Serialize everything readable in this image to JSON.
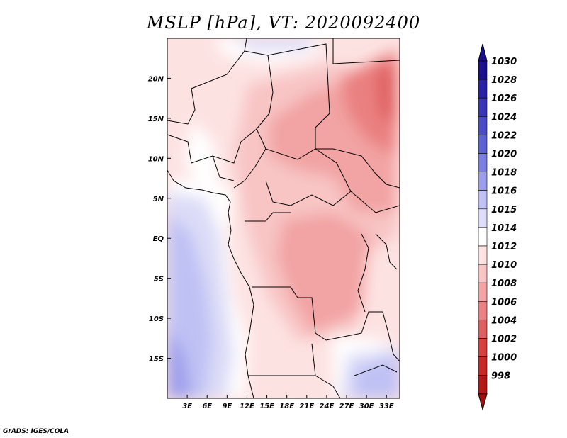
{
  "title": "MSLP [hPa], VT: 2020092400",
  "footer": "GrADS: IGES/COLA",
  "map": {
    "projection": "latlon",
    "lon_range": [
      0,
      35
    ],
    "lat_range": [
      -20,
      25
    ],
    "x_ticks": [
      {
        "lon": 3,
        "label": "3E"
      },
      {
        "lon": 6,
        "label": "6E"
      },
      {
        "lon": 9,
        "label": "9E"
      },
      {
        "lon": 12,
        "label": "12E"
      },
      {
        "lon": 15,
        "label": "15E"
      },
      {
        "lon": 18,
        "label": "18E"
      },
      {
        "lon": 21,
        "label": "21E"
      },
      {
        "lon": 24,
        "label": "24E"
      },
      {
        "lon": 27,
        "label": "27E"
      },
      {
        "lon": 30,
        "label": "30E"
      },
      {
        "lon": 33,
        "label": "33E"
      }
    ],
    "y_ticks": [
      {
        "lat": 20,
        "label": "20N"
      },
      {
        "lat": 15,
        "label": "15N"
      },
      {
        "lat": 10,
        "label": "10N"
      },
      {
        "lat": 5,
        "label": "5N"
      },
      {
        "lat": 0,
        "label": "EQ"
      },
      {
        "lat": -5,
        "label": "5S"
      },
      {
        "lat": -10,
        "label": "10S"
      },
      {
        "lat": -15,
        "label": "15S"
      }
    ]
  },
  "colorbar": {
    "levels": [
      {
        "label": "1030",
        "color": "#1a0f8c"
      },
      {
        "label": "1028",
        "color": "#2a22a6"
      },
      {
        "label": "1026",
        "color": "#3a36b8"
      },
      {
        "label": "1024",
        "color": "#4a4cc8"
      },
      {
        "label": "1022",
        "color": "#5d62d6"
      },
      {
        "label": "1020",
        "color": "#7a7fe2"
      },
      {
        "label": "1018",
        "color": "#9c9eec"
      },
      {
        "label": "1016",
        "color": "#bfc1f4"
      },
      {
        "label": "1015",
        "color": "#dcdcf8"
      },
      {
        "label": "1014",
        "color": "#ffffff"
      },
      {
        "label": "1012",
        "color": "#fde2e2"
      },
      {
        "label": "1010",
        "color": "#f8c4c4"
      },
      {
        "label": "1008",
        "color": "#f2a3a3"
      },
      {
        "label": "1006",
        "color": "#ea8080"
      },
      {
        "label": "1004",
        "color": "#e06060"
      },
      {
        "label": "1002",
        "color": "#d84040"
      },
      {
        "label": "1000",
        "color": "#c82828"
      },
      {
        "label": "998",
        "color": "#b41818"
      }
    ],
    "top_color": "#1a0f8c",
    "bottom_color": "#a01010"
  }
}
